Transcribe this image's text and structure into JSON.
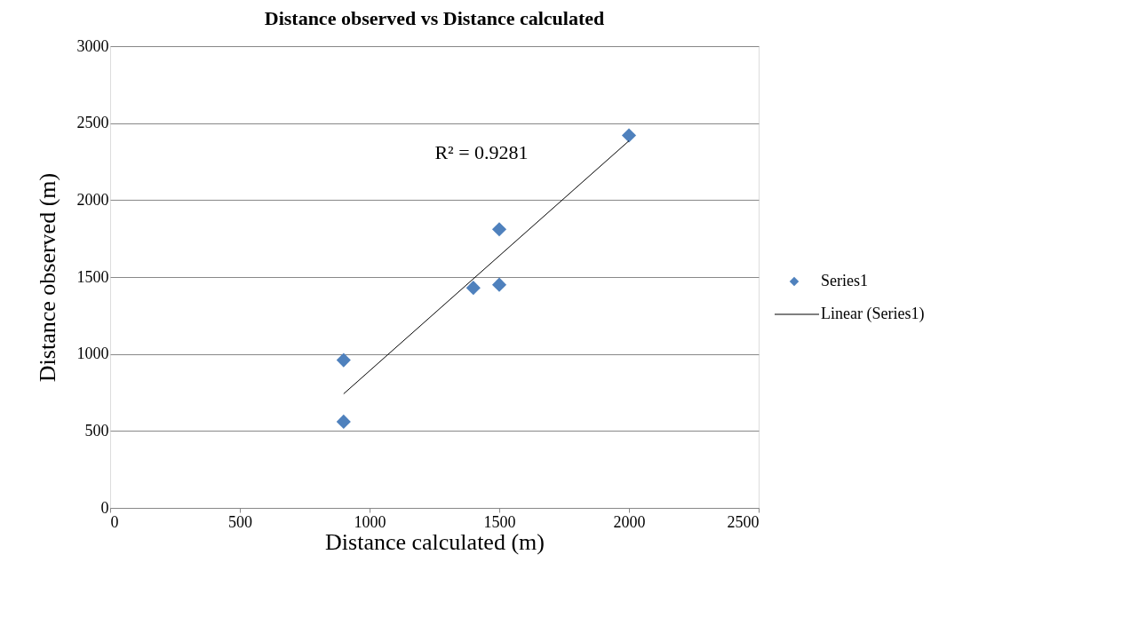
{
  "chart_data": {
    "type": "scatter",
    "title": "Distance observed vs Distance calculated",
    "xlabel": "Distance calculated (m)",
    "ylabel": "Distance observed (m)",
    "x": [
      900,
      900,
      1400,
      1500,
      1500,
      2000
    ],
    "series": [
      {
        "name": "Series1",
        "color": "#4f81bd",
        "values": [
          560,
          960,
          1430,
          1450,
          1810,
          2420
        ],
        "marker": "diamond"
      },
      {
        "name": "Linear (Series1)",
        "type": "line",
        "color": "#000000",
        "x": [
          900,
          2000
        ],
        "values": [
          741,
          2385
        ],
        "marker": "none",
        "line_style": "solid"
      }
    ],
    "annotations": [
      "R² = 0.9281"
    ],
    "xlim": [
      0,
      2500
    ],
    "xticks": [
      0,
      500,
      1000,
      1500,
      2000,
      2500
    ],
    "ylim": [
      0,
      3000
    ],
    "yticks": [
      0,
      500,
      1000,
      1500,
      2000,
      2500,
      3000
    ],
    "grid": "y",
    "legend": "right"
  }
}
